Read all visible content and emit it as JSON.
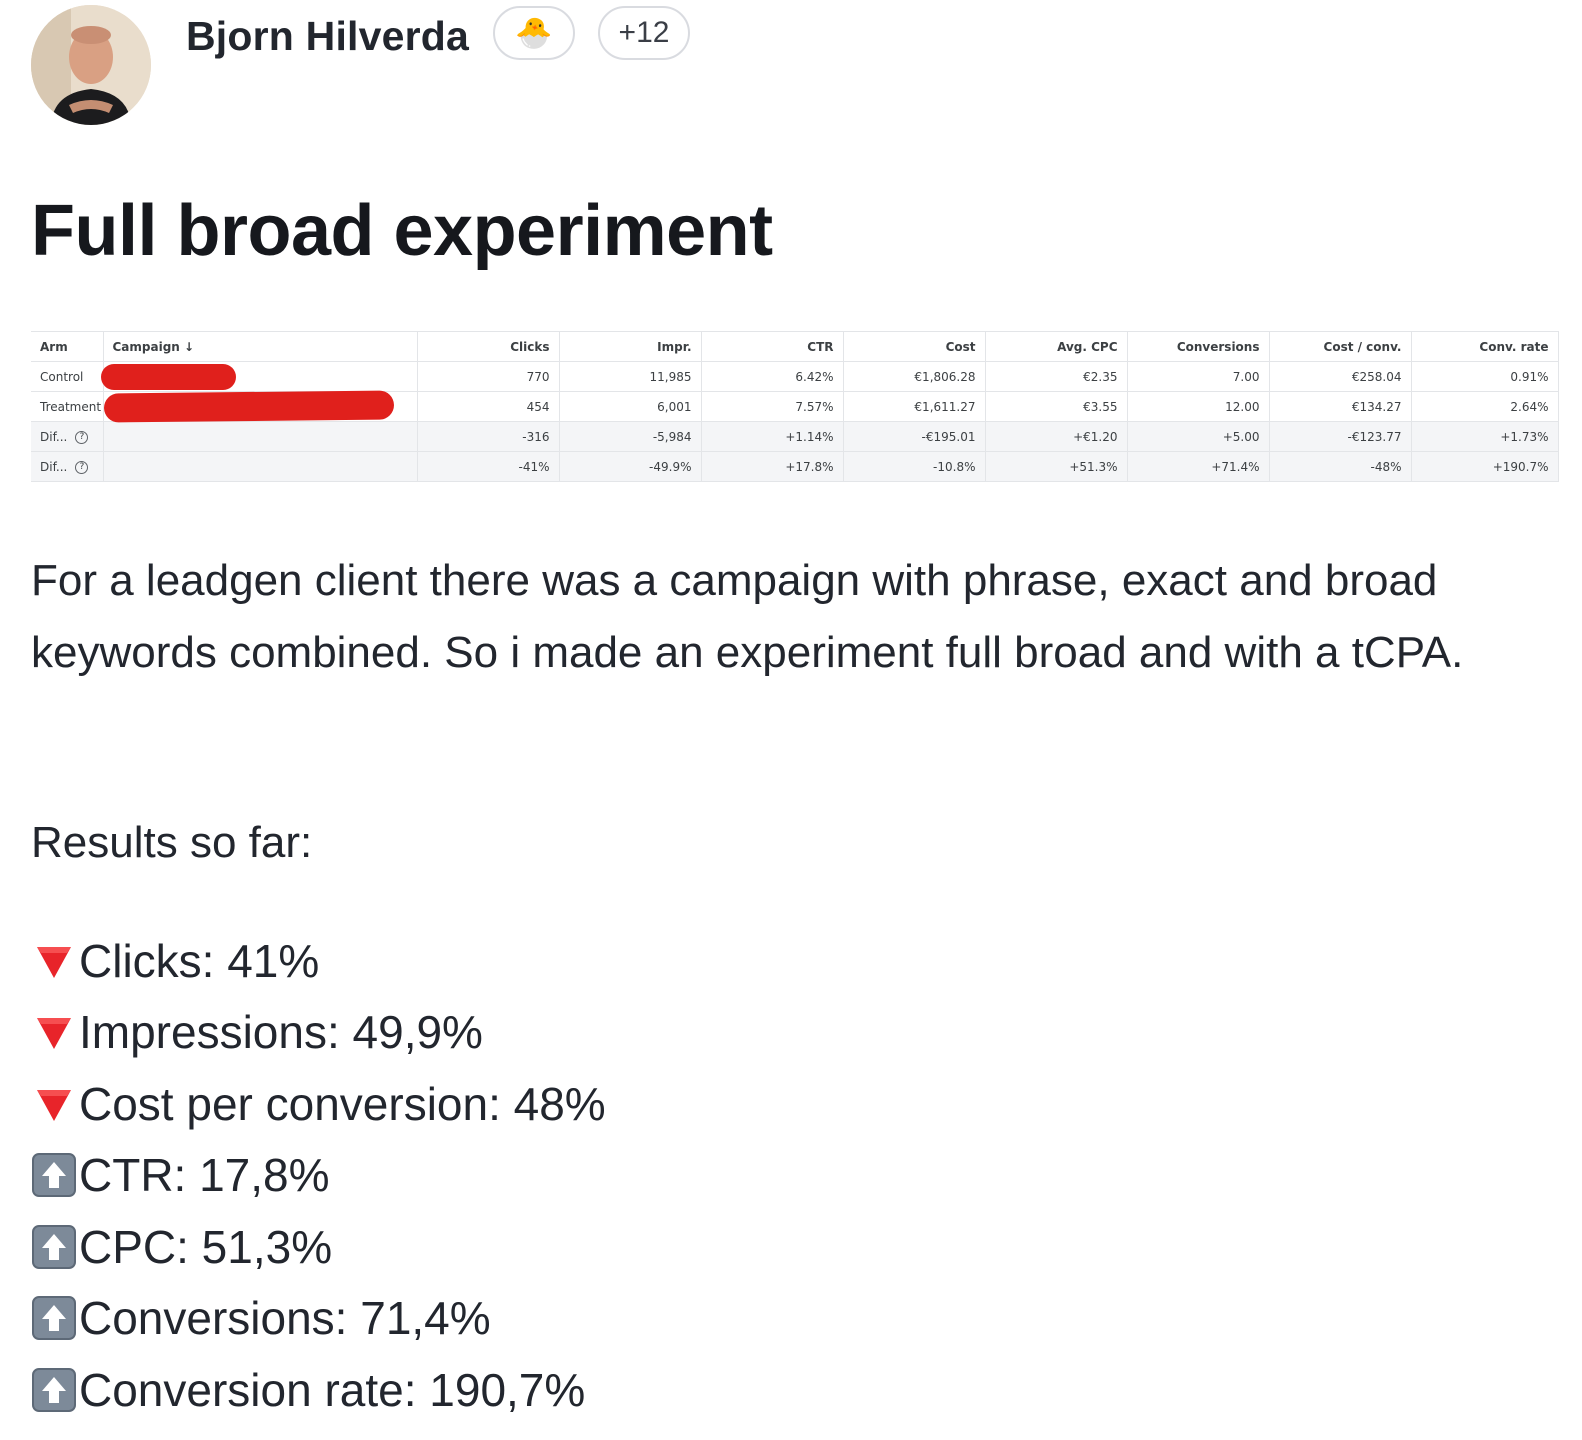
{
  "post": {
    "author": "Bjorn Hilverda",
    "badge_emoji": "🐣",
    "badge_count": "+12",
    "title": "Full broad experiment",
    "body": "For a leadgen client there was a campaign with phrase, exact and broad keywords combined. So i made an experiment full broad and with a tCPA.",
    "results_label": "Results so far:",
    "results": [
      {
        "icon": "red-down-triangle-icon",
        "text": "Clicks: 41%"
      },
      {
        "icon": "red-down-triangle-icon",
        "text": "Impressions: 49,9%"
      },
      {
        "icon": "red-down-triangle-icon",
        "text": "Cost per conversion: 48%"
      },
      {
        "icon": "up-arrow-icon",
        "text": "CTR: 17,8%"
      },
      {
        "icon": "up-arrow-icon",
        "text": "CPC: 51,3%"
      },
      {
        "icon": "up-arrow-icon",
        "text": "Conversions: 71,4%"
      },
      {
        "icon": "up-arrow-icon",
        "text": "Conversion rate: 190,7%"
      }
    ]
  },
  "table": {
    "headers": [
      "Arm",
      "Campaign",
      "Clicks",
      "Impr.",
      "CTR",
      "Cost",
      "Avg. CPC",
      "Conversions",
      "Cost / conv.",
      "Conv. rate"
    ],
    "rows": [
      [
        "Control",
        "",
        "770",
        "11,985",
        "6.42%",
        "€1,806.28",
        "€2.35",
        "7.00",
        "€258.04",
        "0.91%"
      ],
      [
        "Treatment",
        "",
        "454",
        "6,001",
        "7.57%",
        "€1,611.27",
        "€3.55",
        "12.00",
        "€134.27",
        "2.64%"
      ],
      [
        "Dif...",
        "",
        "-316",
        "-5,984",
        "+1.14%",
        "-€195.01",
        "+€1.20",
        "+5.00",
        "-€123.77",
        "+1.73%"
      ],
      [
        "Dif...",
        "",
        "-41%",
        "-49.9%",
        "+17.8%",
        "-10.8%",
        "+51.3%",
        "+71.4%",
        "-48%",
        "+190.7%"
      ]
    ]
  },
  "colors": {
    "redaction": "#e0201c",
    "down_icon": "#e8242a",
    "text": "#22262e"
  }
}
